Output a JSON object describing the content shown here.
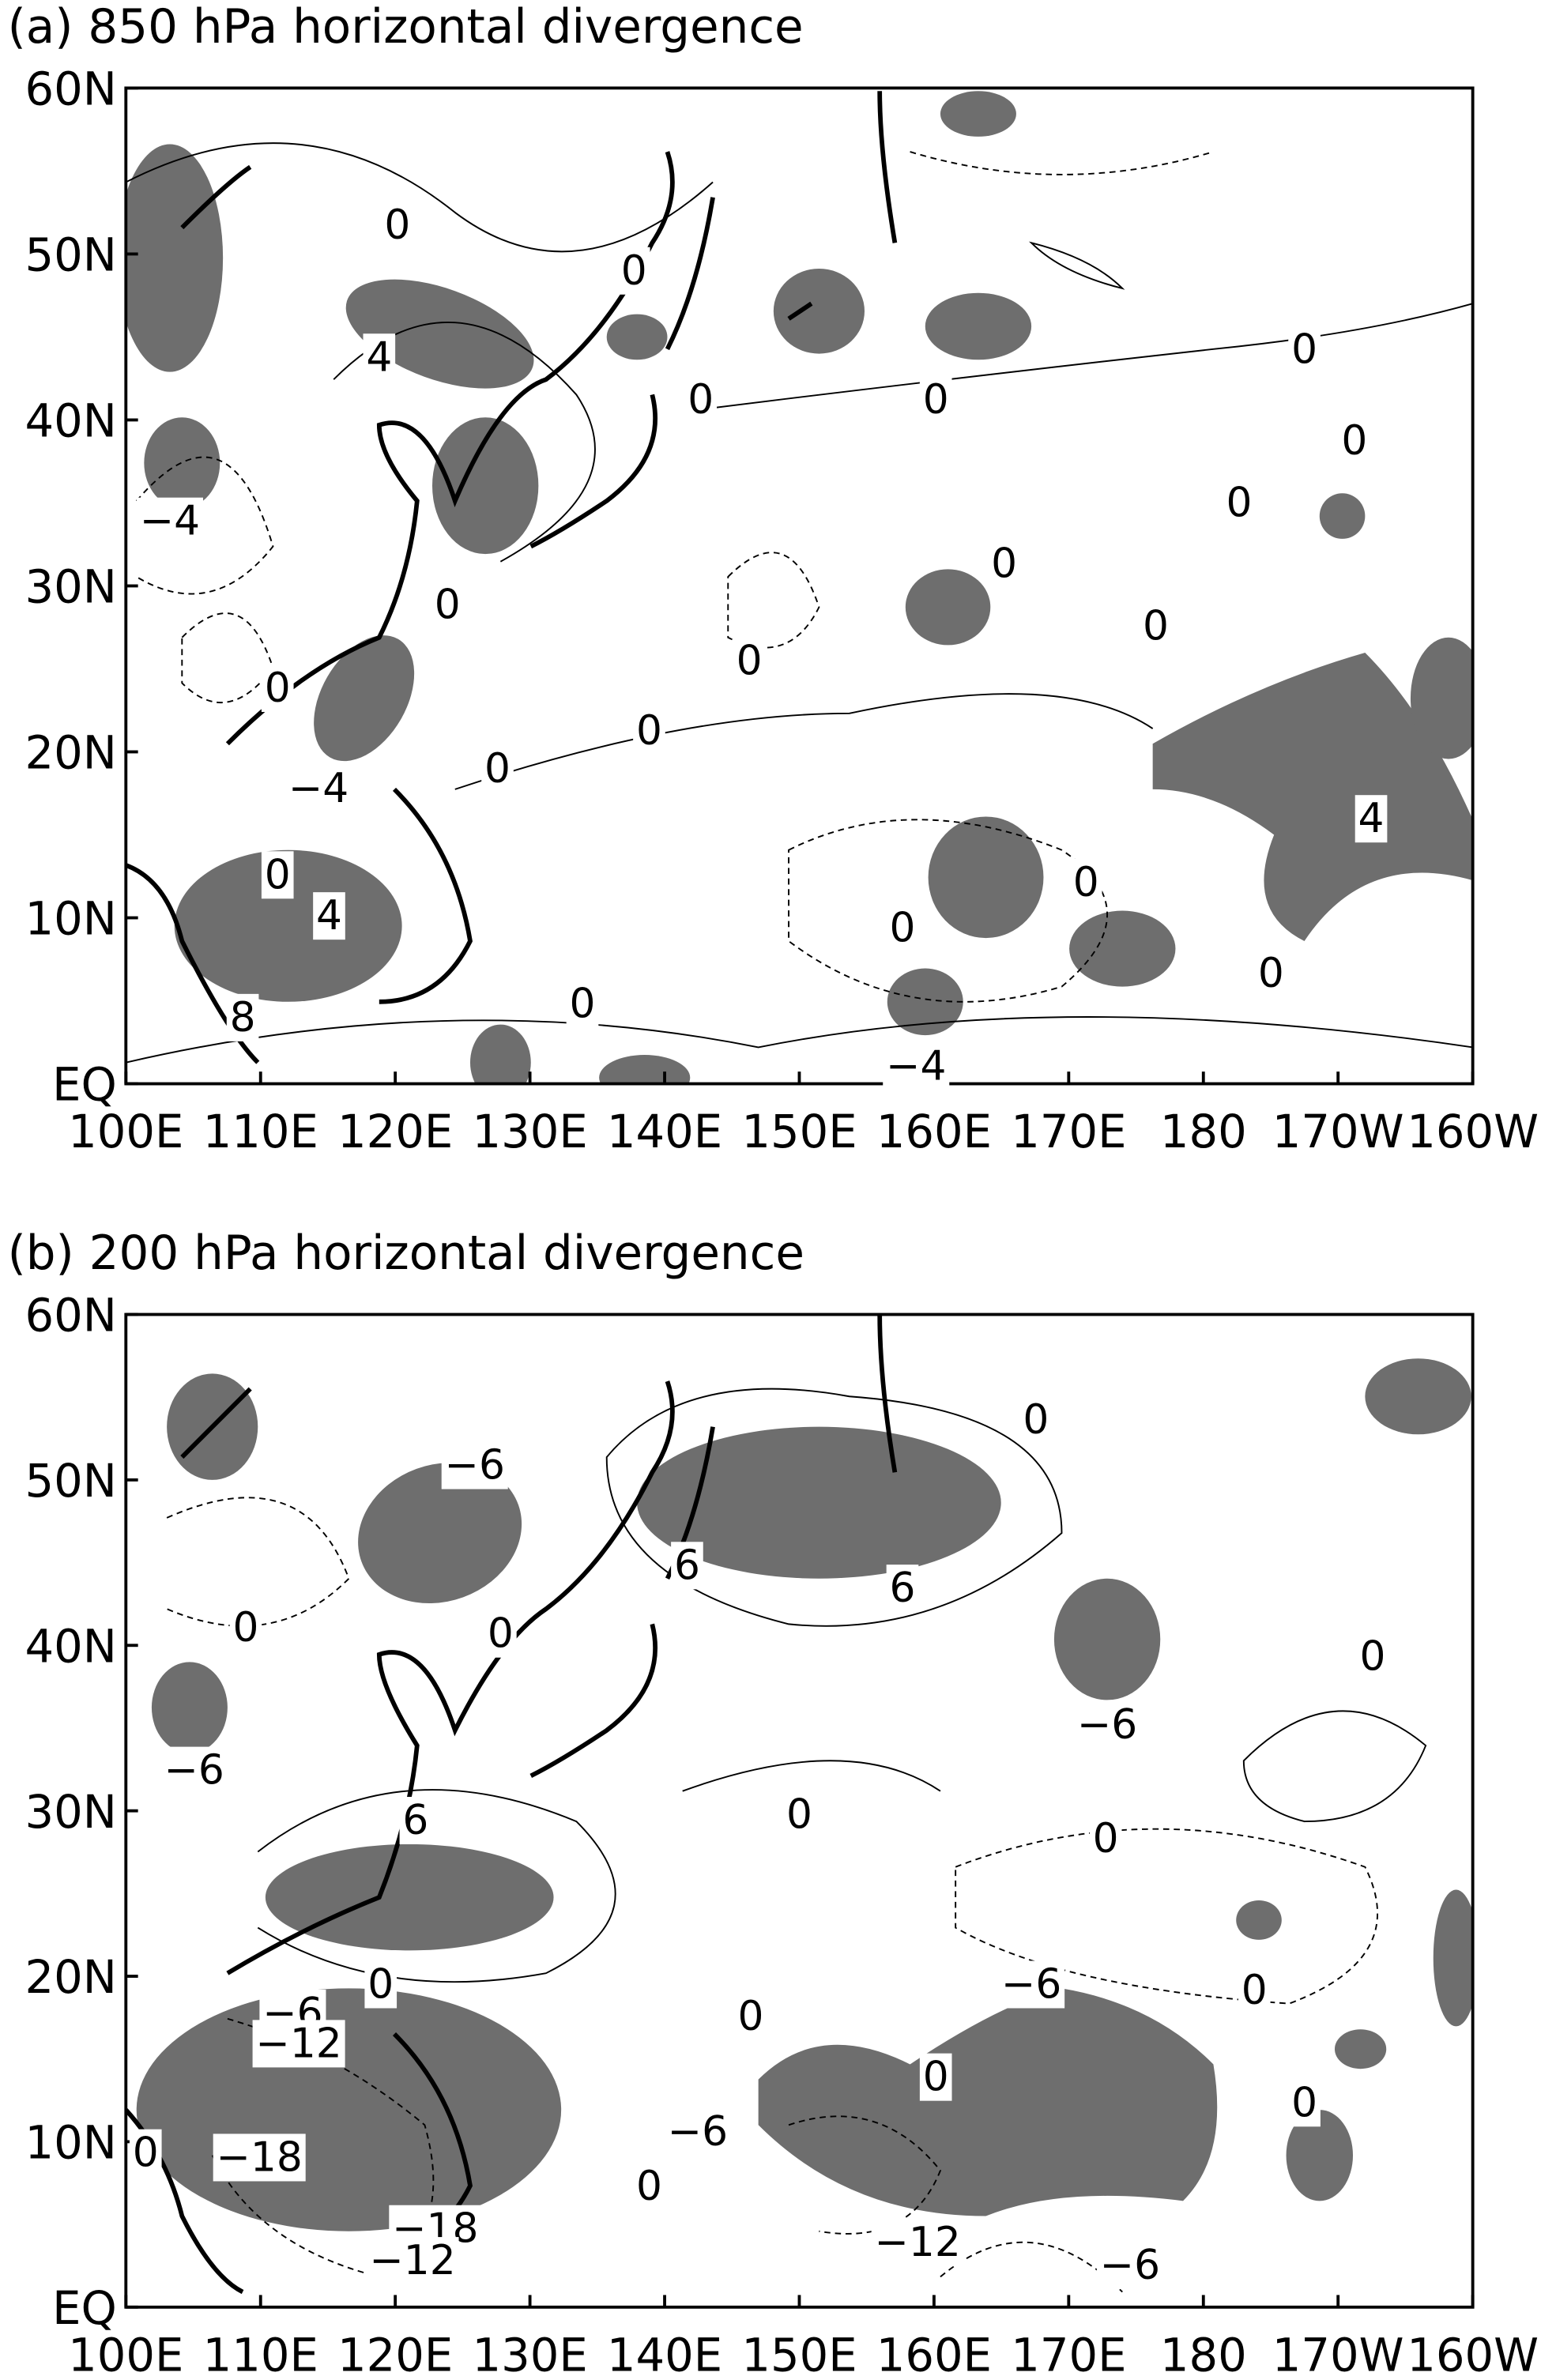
{
  "panels": [
    {
      "title": "(a) 850 hPa horizontal divergence",
      "x_labels": [
        "100E",
        "110E",
        "120E",
        "130E",
        "140E",
        "150E",
        "160E",
        "170E",
        "180",
        "170W",
        "160W"
      ],
      "y_labels": [
        "60N",
        "50N",
        "40N",
        "30N",
        "20N",
        "10N",
        "EQ"
      ],
      "contour_labels": [
        "0",
        "0",
        "4",
        "0",
        "0",
        "0",
        "0",
        "−4",
        "0",
        "0",
        "0",
        "0",
        "0",
        "0",
        "0",
        "0",
        "−4",
        "4",
        "0",
        "4",
        "0",
        "0",
        "0",
        "0",
        "8",
        "−4"
      ]
    },
    {
      "title": "(b) 200 hPa horizontal divergence",
      "x_labels": [
        "100E",
        "110E",
        "120E",
        "130E",
        "140E",
        "150E",
        "160E",
        "170E",
        "180",
        "170W",
        "160W"
      ],
      "y_labels": [
        "60N",
        "50N",
        "40N",
        "30N",
        "20N",
        "10N",
        "EQ"
      ],
      "contour_labels": [
        "0",
        "−6",
        "6",
        "6",
        "0",
        "0",
        "0",
        "−6",
        "−6",
        "0",
        "6",
        "0",
        "0",
        "0",
        "−6",
        "−6",
        "−12",
        "0",
        "0",
        "0",
        "−18",
        "0",
        "−6",
        "0",
        "−12",
        "−6",
        "−18",
        "−12"
      ]
    }
  ]
}
